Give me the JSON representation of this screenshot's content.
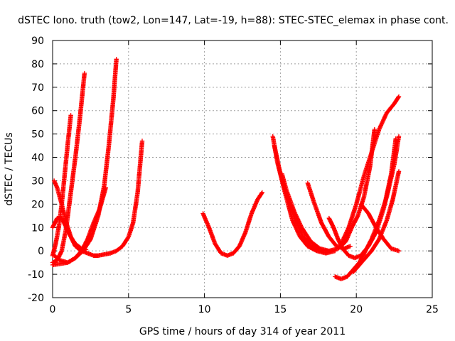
{
  "chart_data": {
    "type": "scatter",
    "title": "dSTEC Iono. truth (tow2, Lon=147, Lat=-19, h=88): STEC-STEC_elemax in phase cont.",
    "xlabel": "GPS time / hours of day 314 of year 2011",
    "ylabel": "dSTEC  / TECUs",
    "xlim": [
      0,
      25
    ],
    "ylim": [
      -20,
      90
    ],
    "xticks": [
      0,
      5,
      10,
      15,
      20,
      25
    ],
    "yticks": [
      -20,
      -10,
      0,
      10,
      20,
      30,
      40,
      50,
      60,
      70,
      80,
      90
    ],
    "grid": true,
    "marker": "plus",
    "color": "#ff0000",
    "series": [
      {
        "points": [
          [
            0.1,
            30
          ],
          [
            0.3,
            27
          ],
          [
            0.6,
            20
          ],
          [
            0.9,
            12
          ],
          [
            1.2,
            6
          ],
          [
            1.5,
            2
          ],
          [
            1.9,
            0
          ],
          [
            2.3,
            -1
          ],
          [
            2.7,
            -2
          ],
          [
            3.0,
            -2
          ],
          [
            3.4,
            -1.5
          ],
          [
            3.8,
            -1
          ],
          [
            4.2,
            0
          ],
          [
            4.6,
            2
          ],
          [
            5.0,
            6
          ],
          [
            5.3,
            12
          ],
          [
            5.6,
            25
          ],
          [
            5.9,
            47
          ]
        ]
      },
      {
        "points": [
          [
            0.0,
            -2
          ],
          [
            0.2,
            3
          ],
          [
            0.4,
            10
          ],
          [
            0.6,
            20
          ],
          [
            0.8,
            33
          ],
          [
            1.0,
            46
          ],
          [
            1.2,
            58
          ]
        ]
      },
      {
        "points": [
          [
            0.0,
            -5
          ],
          [
            0.3,
            -4
          ],
          [
            0.6,
            0
          ],
          [
            0.9,
            10
          ],
          [
            1.2,
            25
          ],
          [
            1.5,
            40
          ],
          [
            1.8,
            57
          ],
          [
            2.1,
            76
          ]
        ]
      },
      {
        "points": [
          [
            0.0,
            -6
          ],
          [
            0.5,
            -5.5
          ],
          [
            1.0,
            -5
          ],
          [
            1.5,
            -3
          ],
          [
            1.9,
            0
          ],
          [
            2.3,
            5
          ],
          [
            2.7,
            12
          ],
          [
            3.1,
            18
          ],
          [
            3.5,
            27
          ]
        ]
      },
      {
        "points": [
          [
            0.1,
            -2
          ],
          [
            0.5,
            -4
          ],
          [
            1.0,
            -5
          ],
          [
            1.5,
            -3
          ],
          [
            2.0,
            0
          ],
          [
            2.5,
            5
          ],
          [
            3.0,
            15
          ],
          [
            3.4,
            28
          ],
          [
            3.7,
            45
          ],
          [
            4.0,
            65
          ],
          [
            4.2,
            82
          ]
        ]
      },
      {
        "points": [
          [
            0.0,
            10
          ],
          [
            0.3,
            14
          ],
          [
            0.6,
            14
          ],
          [
            0.9,
            10
          ],
          [
            1.2,
            6
          ],
          [
            1.5,
            3
          ],
          [
            1.9,
            1
          ],
          [
            2.2,
            0.5
          ]
        ]
      },
      {
        "points": [
          [
            9.9,
            16
          ],
          [
            10.3,
            10
          ],
          [
            10.7,
            3
          ],
          [
            11.1,
            -1
          ],
          [
            11.5,
            -2
          ],
          [
            11.9,
            -1
          ],
          [
            12.3,
            2
          ],
          [
            12.7,
            8
          ],
          [
            13.1,
            16
          ],
          [
            13.5,
            22
          ],
          [
            13.8,
            25
          ]
        ]
      },
      {
        "points": [
          [
            14.5,
            49
          ],
          [
            14.8,
            38
          ],
          [
            15.3,
            25
          ],
          [
            15.8,
            13
          ],
          [
            16.3,
            6
          ],
          [
            16.8,
            2
          ],
          [
            17.4,
            0
          ],
          [
            18.0,
            -1
          ],
          [
            18.6,
            0
          ]
        ]
      },
      {
        "points": [
          [
            14.6,
            45
          ],
          [
            15.0,
            33
          ],
          [
            15.5,
            22
          ],
          [
            16.0,
            13
          ],
          [
            16.5,
            6
          ],
          [
            17.0,
            2
          ],
          [
            17.6,
            0
          ],
          [
            18.2,
            0
          ],
          [
            18.8,
            1
          ],
          [
            19.3,
            4
          ],
          [
            19.7,
            10
          ],
          [
            20.1,
            15
          ],
          [
            20.5,
            23
          ],
          [
            20.9,
            36
          ],
          [
            21.2,
            52
          ]
        ]
      },
      {
        "points": [
          [
            15.1,
            33
          ],
          [
            15.4,
            26
          ],
          [
            15.9,
            17
          ],
          [
            16.4,
            10
          ],
          [
            17.0,
            4
          ],
          [
            17.6,
            1
          ],
          [
            18.2,
            0
          ]
        ]
      },
      {
        "points": [
          [
            16.8,
            29
          ],
          [
            17.2,
            21
          ],
          [
            17.7,
            12
          ],
          [
            18.2,
            6
          ],
          [
            18.7,
            2
          ],
          [
            19.2,
            1
          ],
          [
            19.6,
            2
          ]
        ]
      },
      {
        "points": [
          [
            18.2,
            14
          ],
          [
            18.5,
            10
          ],
          [
            18.8,
            5
          ],
          [
            19.1,
            1
          ],
          [
            19.5,
            -2
          ],
          [
            19.9,
            -3
          ],
          [
            20.3,
            -2
          ],
          [
            20.8,
            2
          ],
          [
            21.3,
            8
          ],
          [
            21.8,
            18
          ],
          [
            22.3,
            33
          ],
          [
            22.6,
            48
          ]
        ]
      },
      {
        "points": [
          [
            18.6,
            -11
          ],
          [
            19.0,
            -12
          ],
          [
            19.4,
            -11
          ],
          [
            19.8,
            -8
          ],
          [
            20.2,
            -5
          ],
          [
            20.6,
            0
          ],
          [
            21.0,
            5
          ],
          [
            21.5,
            13
          ],
          [
            22.0,
            23
          ],
          [
            22.5,
            37
          ],
          [
            22.8,
            49
          ]
        ]
      },
      {
        "points": [
          [
            19.8,
            -9
          ],
          [
            20.2,
            -6
          ],
          [
            20.6,
            -3
          ],
          [
            21.0,
            0
          ],
          [
            21.5,
            5
          ],
          [
            22.0,
            13
          ],
          [
            22.4,
            22
          ],
          [
            22.8,
            34
          ]
        ]
      },
      {
        "points": [
          [
            19.0,
            3
          ],
          [
            19.5,
            10
          ],
          [
            20.0,
            20
          ],
          [
            20.5,
            32
          ],
          [
            21.0,
            42
          ],
          [
            21.5,
            52
          ],
          [
            22.0,
            59
          ],
          [
            22.5,
            63
          ],
          [
            22.8,
            66
          ]
        ]
      },
      {
        "points": [
          [
            20.3,
            20
          ],
          [
            20.8,
            16
          ],
          [
            21.3,
            10
          ],
          [
            21.8,
            5
          ],
          [
            22.3,
            1
          ],
          [
            22.8,
            0
          ]
        ]
      }
    ]
  }
}
